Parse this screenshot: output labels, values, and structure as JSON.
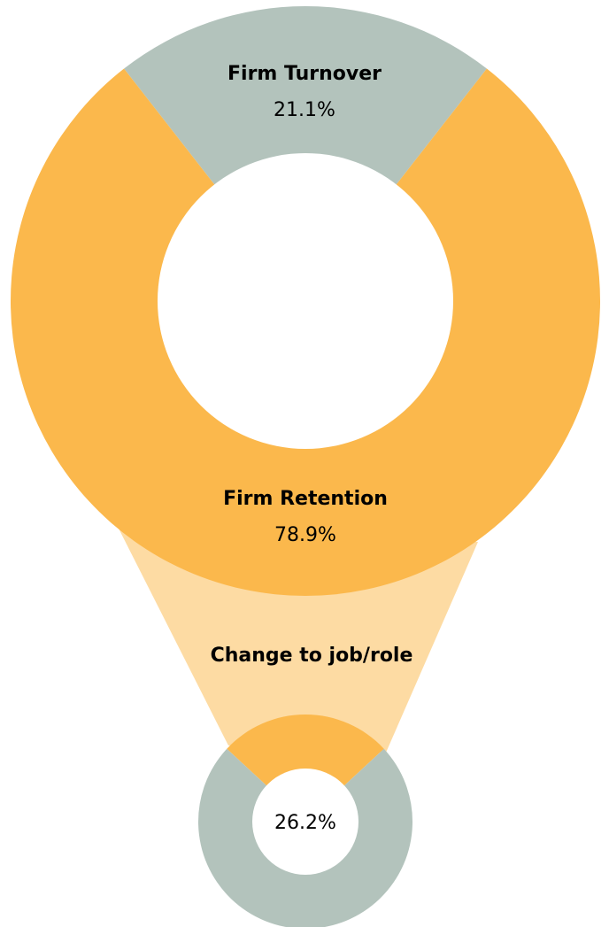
{
  "chart_data": [
    {
      "type": "pie",
      "variant": "donut",
      "slices": [
        {
          "label": "Firm Turnover",
          "value": 21.1,
          "value_label": "21.1%",
          "color": "#b3c3bc"
        },
        {
          "label": "Firm Retention",
          "value": 78.9,
          "value_label": "78.9%",
          "color": "#fbb84c"
        }
      ]
    },
    {
      "type": "pie",
      "variant": "donut",
      "connector_label": "Change to job/role",
      "connector_color": "#fddba3",
      "slices": [
        {
          "label": "",
          "value": 26.2,
          "value_label": "26.2%",
          "color": "#fbb84c"
        },
        {
          "label": "",
          "value": 73.8,
          "value_label": "",
          "color": "#b3c3bc"
        }
      ]
    }
  ]
}
